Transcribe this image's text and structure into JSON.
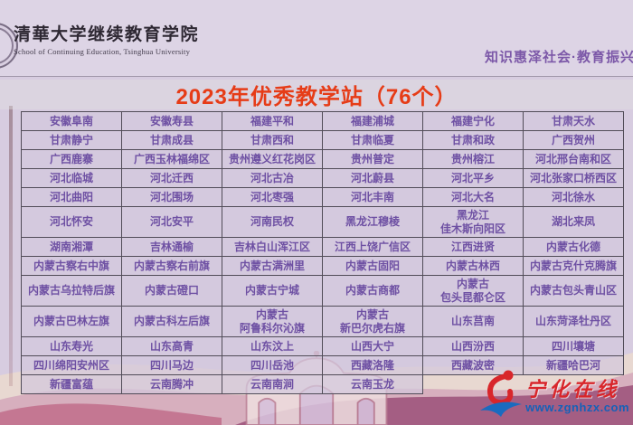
{
  "header": {
    "institution_cn": "清華大学继续教育学院",
    "institution_en": "School of Continuing Education, Tsinghua University",
    "slogan": "知识惠泽社会·教育振兴"
  },
  "title": "2023年优秀教学站（76个）",
  "table": {
    "rows": [
      [
        "安徽阜南",
        "安徽寿县",
        "福建平和",
        "福建浦城",
        "福建宁化",
        "甘肃天水"
      ],
      [
        "甘肃静宁",
        "甘肃成县",
        "甘肃西和",
        "甘肃临夏",
        "甘肃和政",
        "广西贺州"
      ],
      [
        "广西鹿寨",
        "广西玉林福绵区",
        "贵州遵义红花岗区",
        "贵州普定",
        "贵州榕江",
        "河北邢台南和区"
      ],
      [
        "河北临城",
        "河北迁西",
        "河北古冶",
        "河北蔚县",
        "河北平乡",
        "河北张家口桥西区"
      ],
      [
        "河北曲阳",
        "河北围场",
        "河北枣强",
        "河北丰南",
        "河北大名",
        "河北徐水"
      ],
      [
        "河北怀安",
        "河北安平",
        "河南民权",
        "黑龙江穆棱",
        "黑龙江\n佳木斯向阳区",
        "湖北来凤"
      ],
      [
        "湖南湘潭",
        "吉林通榆",
        "吉林白山浑江区",
        "江西上饶广信区",
        "江西进贤",
        "内蒙古化德"
      ],
      [
        "内蒙古察右中旗",
        "内蒙古察右前旗",
        "内蒙古满洲里",
        "内蒙古固阳",
        "内蒙古林西",
        "内蒙古克什克腾旗"
      ],
      [
        "内蒙古乌拉特后旗",
        "内蒙古磴口",
        "内蒙古宁城",
        "内蒙古商都",
        "内蒙古\n包头昆都仑区",
        "内蒙古包头青山区"
      ],
      [
        "内蒙古巴林左旗",
        "内蒙古科左后旗",
        "内蒙古\n阿鲁科尔沁旗",
        "内蒙古\n新巴尔虎右旗",
        "山东莒南",
        "山东菏泽牡丹区"
      ],
      [
        "山东寿光",
        "山东高青",
        "山东汶上",
        "山西大宁",
        "山西汾西",
        "四川壤塘"
      ],
      [
        "四川绵阳安州区",
        "四川马边",
        "四川岳池",
        "西藏洛隆",
        "西藏波密",
        "新疆哈巴河"
      ],
      [
        "新疆富蕴",
        "云南腾冲",
        "云南南涧",
        "云南玉龙",
        null,
        null
      ]
    ]
  },
  "watermark": {
    "site_name": "宁化在线",
    "site_url": "www.zgnhzx.com"
  },
  "colors": {
    "title_red": "#e63c17",
    "cell_text_purple": "#6e50a3",
    "slogan_purple": "#7c58a8",
    "watermark_red": "#d8262b",
    "watermark_blue": "#1661b8",
    "background_lavender": "#d7cce0"
  }
}
